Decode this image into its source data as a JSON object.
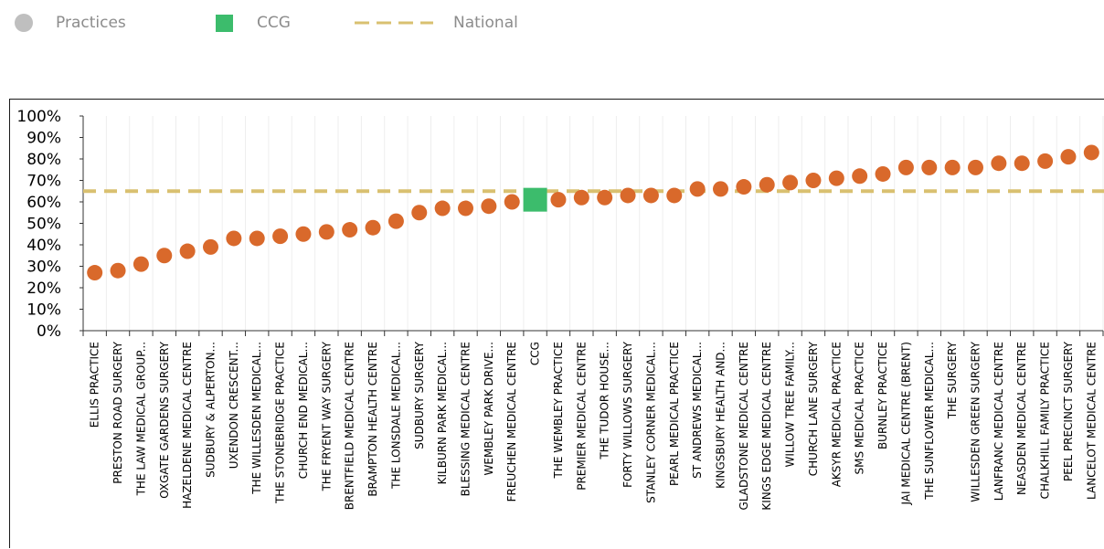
{
  "legend": {
    "practices_label": "Practices",
    "ccg_label": "CCG",
    "national_label": "National",
    "practices_icon": "grey-circle-icon",
    "ccg_icon": "green-square-icon",
    "national_icon": "dashed-line-icon"
  },
  "colors": {
    "practice": "#d9692b",
    "ccg": "#3cbc6c",
    "national": "#d9c070",
    "legend_practices": "#bfbfbf",
    "grid": "#eeeeee",
    "axis": "#333333"
  },
  "chart_data": {
    "type": "scatter",
    "title": "",
    "xlabel": "",
    "ylabel": "",
    "ylim": [
      0,
      100
    ],
    "y_unit": "%",
    "y_ticks": [
      "0%",
      "10%",
      "20%",
      "30%",
      "40%",
      "50%",
      "60%",
      "70%",
      "80%",
      "90%",
      "100%"
    ],
    "national_value": 65,
    "categories": [
      "ELLIS PRACTICE",
      "PRESTON ROAD SURGERY",
      "THE LAW MEDICAL GROUP...",
      "OXGATE GARDENS SURGERY",
      "HAZELDENE MEDICAL CENTRE",
      "SUDBURY & ALPERTON...",
      "UXENDON CRESCENT...",
      "THE WILLESDEN MEDICAL...",
      "THE STONEBRIDGE PRACTICE",
      "CHURCH END MEDICAL...",
      "THE FRYENT WAY SURGERY",
      "BRENTFIELD MEDICAL CENTRE",
      "BRAMPTON HEALTH CENTRE",
      "THE LONSDALE MEDICAL...",
      "SUDBURY SURGERY",
      "KILBURN PARK MEDICAL...",
      "BLESSING MEDICAL CENTRE",
      "WEMBLEY PARK DRIVE...",
      "FREUCHEN MEDICAL CENTRE",
      "CCG",
      "THE WEMBLEY PRACTICE",
      "PREMIER MEDICAL CENTRE",
      "THE TUDOR HOUSE...",
      "FORTY WILLOWS SURGERY",
      "STANLEY CORNER MEDICAL...",
      "PEARL MEDICAL PRACTICE",
      "ST ANDREWS MEDICAL...",
      "KINGSBURY HEALTH AND...",
      "GLADSTONE MEDICAL CENTRE",
      "KINGS EDGE MEDICAL CENTRE",
      "WILLOW TREE FAMILY...",
      "CHURCH LANE SURGERY",
      "AKSYR MEDICAL PRACTICE",
      "SMS MEDICAL PRACTICE",
      "BURNLEY PRACTICE",
      "JAI MEDICAL CENTRE (BRENT)",
      "THE SUNFLOWER MEDICAL...",
      "THE SURGERY",
      "WILLESDEN GREEN SURGERY",
      "LANFRANC MEDICAL CENTRE",
      "NEASDEN MEDICAL CENTRE",
      "CHALKHILL FAMILY PRACTICE",
      "PEEL PRECINCT SURGERY",
      "LANCELOT MEDICAL CENTRE"
    ],
    "values": [
      27,
      28,
      31,
      35,
      37,
      39,
      43,
      43,
      44,
      45,
      46,
      47,
      48,
      51,
      55,
      57,
      57,
      58,
      60,
      61,
      61,
      62,
      62,
      63,
      63,
      63,
      66,
      66,
      67,
      68,
      69,
      70,
      71,
      72,
      73,
      76,
      76,
      76,
      76,
      78,
      78,
      79,
      81,
      83
    ],
    "ccg_index": 19,
    "grid": true,
    "legend_position": "top-left"
  }
}
